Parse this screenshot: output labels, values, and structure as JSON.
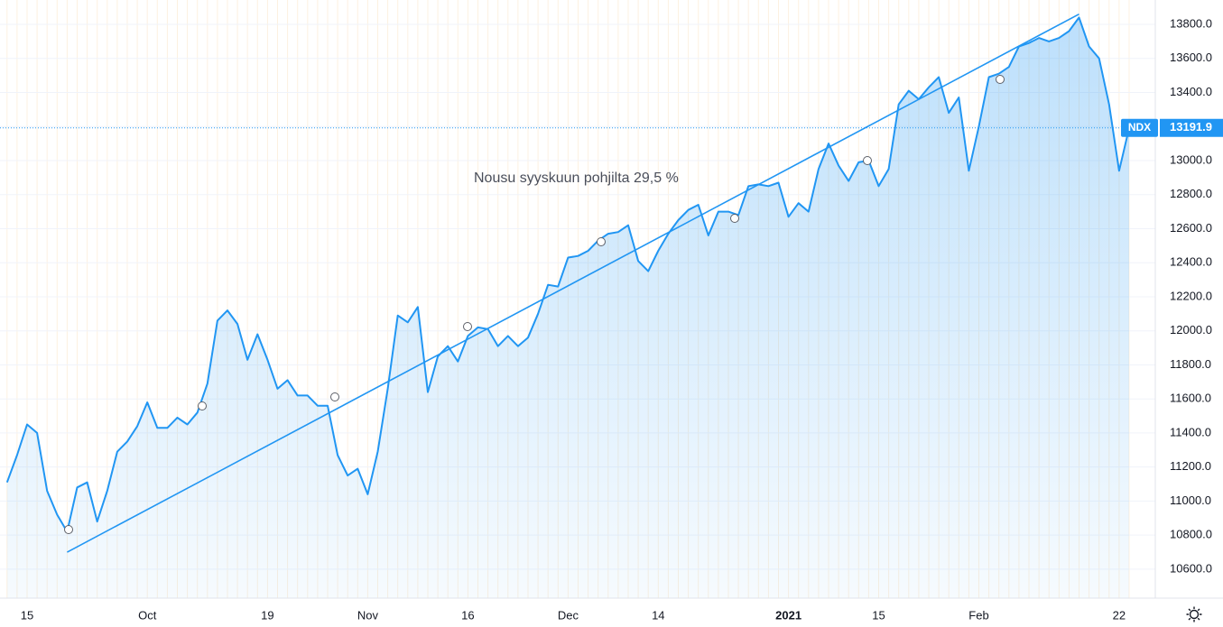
{
  "chart_data": {
    "type": "area",
    "series": [
      {
        "name": "NDX",
        "color": "#2196f3",
        "values": [
          11110,
          11270,
          11450,
          11400,
          11060,
          10920,
          10820,
          11080,
          11110,
          10880,
          11060,
          11290,
          11350,
          11440,
          11580,
          11430,
          11430,
          11490,
          11450,
          11520,
          11690,
          12060,
          12120,
          12040,
          11830,
          11980,
          11830,
          11660,
          11710,
          11620,
          11620,
          11560,
          11560,
          11270,
          11150,
          11190,
          11040,
          11290,
          11660,
          12090,
          12050,
          12140,
          11640,
          11850,
          11910,
          11820,
          11970,
          12020,
          12010,
          11910,
          11970,
          11910,
          11960,
          12100,
          12270,
          12260,
          12430,
          12440,
          12470,
          12530,
          12570,
          12580,
          12620,
          12410,
          12350,
          12470,
          12570,
          12650,
          12710,
          12740,
          12560,
          12700,
          12700,
          12680,
          12850,
          12860,
          12850,
          12870,
          12670,
          12750,
          12700,
          12950,
          13100,
          12970,
          12880,
          12990,
          13000,
          12850,
          12950,
          13330,
          13410,
          13360,
          13430,
          13490,
          13280,
          13370,
          12940,
          13200,
          13490,
          13510,
          13550,
          13670,
          13690,
          13720,
          13700,
          13720,
          13760,
          13840,
          13670,
          13600,
          13330,
          12940,
          13191.9
        ]
      }
    ],
    "categories": [
      null,
      null,
      "15",
      null,
      null,
      null,
      null,
      null,
      null,
      null,
      null,
      null,
      null,
      null,
      "Oct",
      null,
      null,
      null,
      null,
      null,
      null,
      null,
      null,
      null,
      null,
      null,
      "19",
      null,
      null,
      null,
      null,
      null,
      null,
      null,
      null,
      null,
      "Nov",
      null,
      null,
      null,
      null,
      null,
      null,
      null,
      null,
      null,
      "16",
      null,
      null,
      null,
      null,
      null,
      null,
      null,
      null,
      null,
      "Dec",
      null,
      null,
      null,
      null,
      null,
      null,
      null,
      null,
      "14",
      null,
      null,
      null,
      null,
      null,
      null,
      null,
      null,
      null,
      null,
      null,
      null,
      "2021",
      null,
      null,
      null,
      null,
      null,
      null,
      null,
      null,
      "15",
      null,
      null,
      null,
      null,
      null,
      null,
      null,
      null,
      null,
      "Feb",
      null,
      null,
      null,
      null,
      null,
      null,
      null,
      null,
      null,
      null,
      null,
      null,
      null,
      "22",
      null
    ],
    "ylim": [
      10430,
      13943
    ],
    "yticks": [
      {
        "value": 10600,
        "label": "10600.0"
      },
      {
        "value": 10800,
        "label": "10800.0"
      },
      {
        "value": 11000,
        "label": "11000.0"
      },
      {
        "value": 11200,
        "label": "11200.0"
      },
      {
        "value": 11400,
        "label": "11400.0"
      },
      {
        "value": 11600,
        "label": "11600.0"
      },
      {
        "value": 11800,
        "label": "11800.0"
      },
      {
        "value": 12000,
        "label": "12000.0"
      },
      {
        "value": 12200,
        "label": "12200.0"
      },
      {
        "value": 12400,
        "label": "12400.0"
      },
      {
        "value": 12600,
        "label": "12600.0"
      },
      {
        "value": 12800,
        "label": "12800.0"
      },
      {
        "value": 13000,
        "label": "13000.0"
      },
      {
        "value": 13200,
        "label": "13200.0"
      },
      {
        "value": 13400,
        "label": "13400.0"
      },
      {
        "value": 13600,
        "label": "13600.0"
      },
      {
        "value": 13800,
        "label": "13800.0"
      }
    ],
    "grid": true,
    "trendline": {
      "start": {
        "x": 6,
        "y": 10700
      },
      "end": {
        "x": 107,
        "y": 13860
      },
      "color": "#2196f3"
    },
    "annotation": "Nousu syyskuun pohjilta 29,5 %"
  }
}
